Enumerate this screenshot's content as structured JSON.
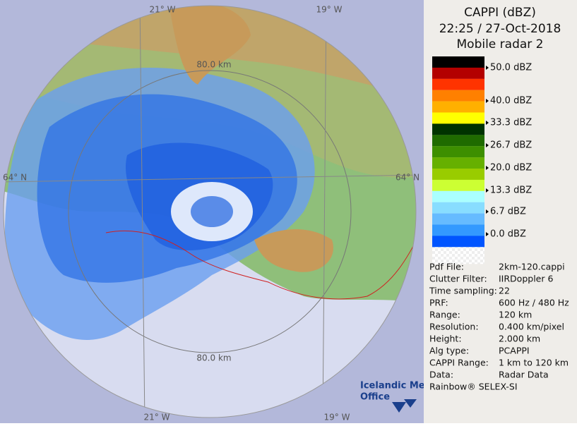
{
  "header": {
    "product": "CAPPI (dBZ)",
    "datetime": "22:25 / 27-Oct-2018",
    "radar": "Mobile radar 2"
  },
  "legend": {
    "labels": [
      "50.0 dBZ",
      "40.0 dBZ",
      "33.3 dBZ",
      "26.7 dBZ",
      "20.0 dBZ",
      "13.3 dBZ",
      "6.7 dBZ",
      "0.0 dBZ"
    ]
  },
  "info": {
    "rows": [
      [
        "Pdf File:",
        "2km-120.cappi"
      ],
      [
        "Clutter Filter:",
        "IIRDoppler 6"
      ],
      [
        "Time sampling:",
        "22"
      ],
      [
        "PRF:",
        "600 Hz / 480 Hz"
      ],
      [
        "Range:",
        "120 km"
      ],
      [
        "Resolution:",
        "0.400 km/pixel"
      ],
      [
        "Height:",
        "2.000 km"
      ],
      [
        "Alg type:",
        "PCAPPI"
      ],
      [
        "CAPPI Range:",
        "1 km to 120 km"
      ],
      [
        "Data:",
        "Radar Data"
      ]
    ]
  },
  "footer": "Rainbow® SELEX-SI",
  "map": {
    "labels": [
      "21° W",
      "19° W",
      "64° N",
      "64° N",
      "80.0 km",
      "80.0 km",
      "21° W",
      "19° W"
    ]
  },
  "logo": [
    "Icelandic Met",
    "Office"
  ]
}
